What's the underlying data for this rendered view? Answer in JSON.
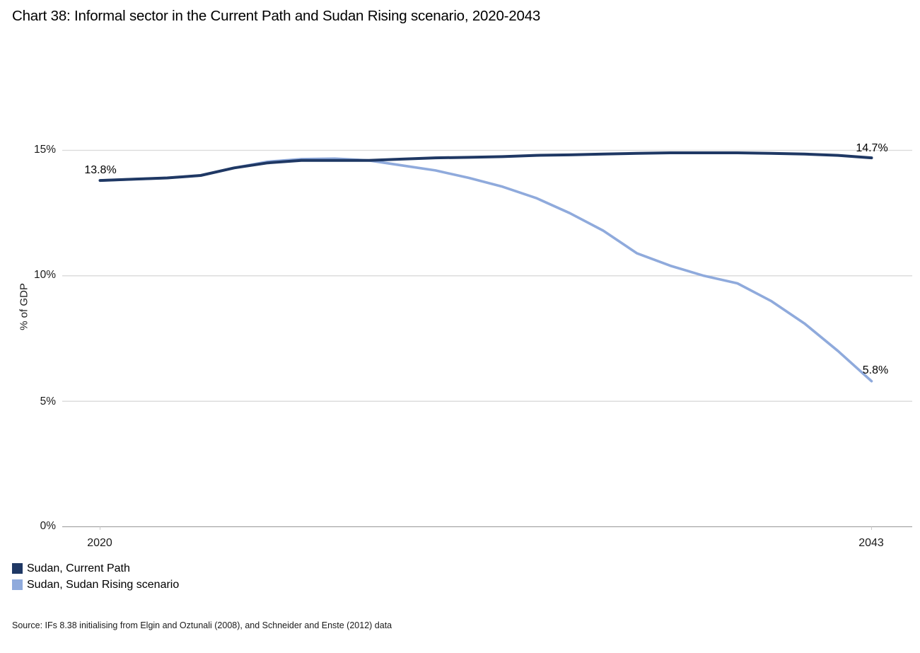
{
  "title": "Chart 38: Informal sector in the Current Path and Sudan Rising scenario, 2020-2043",
  "source": "Source: IFs 8.38 initialising from Elgin and Oztunali (2008), and Schneider and Enste (2012) data",
  "chart_data": {
    "type": "line",
    "title": "Chart 38: Informal sector in the Current Path and Sudan Rising scenario, 2020-2043",
    "ylabel": "% of GDP",
    "xlabel": "",
    "ylim": [
      0,
      15
    ],
    "grid": "horizontal-only",
    "legend_position": "bottom-left",
    "x": [
      2020,
      2021,
      2022,
      2023,
      2024,
      2025,
      2026,
      2027,
      2028,
      2029,
      2030,
      2031,
      2032,
      2033,
      2034,
      2035,
      2036,
      2037,
      2038,
      2039,
      2040,
      2041,
      2042,
      2043
    ],
    "series": [
      {
        "name": "Sudan, Current Path",
        "color": "#1F3864",
        "values": [
          13.8,
          13.85,
          13.9,
          14.0,
          14.3,
          14.5,
          14.6,
          14.6,
          14.6,
          14.65,
          14.7,
          14.72,
          14.75,
          14.8,
          14.82,
          14.85,
          14.88,
          14.9,
          14.9,
          14.9,
          14.88,
          14.85,
          14.8,
          14.7
        ]
      },
      {
        "name": "Sudan, Sudan Rising scenario",
        "color": "#8FAADC",
        "values": [
          13.8,
          13.85,
          13.9,
          14.0,
          14.3,
          14.55,
          14.65,
          14.67,
          14.6,
          14.4,
          14.2,
          13.9,
          13.55,
          13.1,
          12.5,
          11.8,
          10.9,
          10.4,
          10.0,
          9.7,
          9.0,
          8.1,
          7.0,
          5.8
        ]
      }
    ],
    "y_axis": {
      "label": "% of GDP",
      "ticks": [
        {
          "value": 15,
          "label": "15%"
        },
        {
          "value": 10,
          "label": "10%"
        },
        {
          "value": 5,
          "label": "5%"
        },
        {
          "value": 0,
          "label": "0%"
        }
      ]
    },
    "x_axis": {
      "min": 2020,
      "max": 2043,
      "ticks": [
        {
          "value": 2020,
          "label": "2020"
        },
        {
          "value": 2043,
          "label": "2043"
        }
      ]
    },
    "annotations": [
      {
        "series": "Sudan, Current Path",
        "x": 2020,
        "y": 13.8,
        "label": "13.8%"
      },
      {
        "series": "Sudan, Current Path",
        "x": 2043,
        "y": 14.7,
        "label": "14.7%"
      },
      {
        "series": "Sudan, Sudan Rising scenario",
        "x": 2043,
        "y": 5.8,
        "label": "5.8%"
      }
    ],
    "colors": {
      "gridline": "#D9D9D9",
      "axis_line": "#A6A6A6",
      "tick_mark": "#C9C9C9"
    }
  }
}
